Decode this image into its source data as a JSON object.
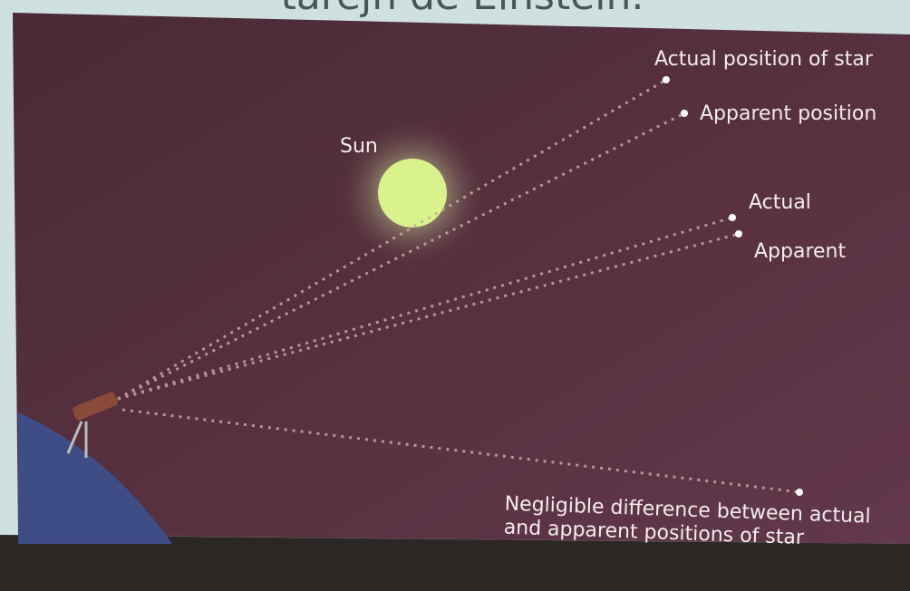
{
  "header": {
    "title": "tarejn de Einstein."
  },
  "labels": {
    "sun": "Sun",
    "star1_actual": "Actual position of star",
    "star1_apparent": "Apparent position",
    "star2_actual": "Actual",
    "star2_apparent": "Apparent",
    "note_line1": "Negligible difference between actual",
    "note_line2": "and apparent positions of star"
  }
}
